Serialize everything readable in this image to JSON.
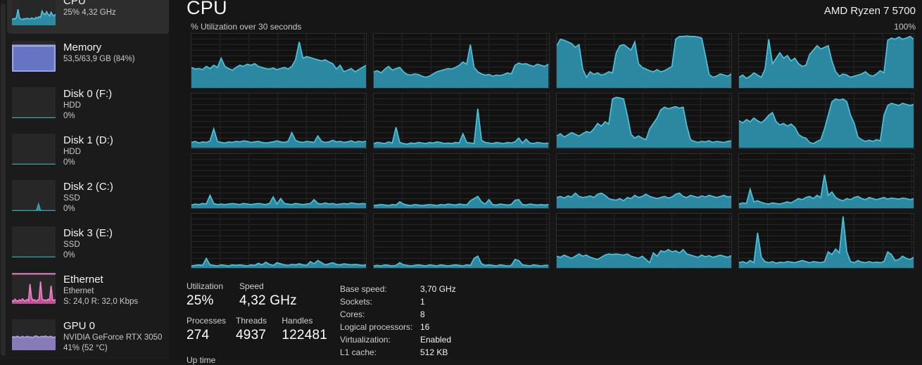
{
  "colors": {
    "cpu_fill": "#2e93ad",
    "cpu_stroke": "#4cc2da",
    "memory_fill": "#6674c4",
    "memory_border": "#98a6e8",
    "ethernet_stroke": "#ee82c6",
    "ethernet_fill": "#c9589d",
    "gpu_fill": "#9181c5",
    "gpu_stroke": "#b4a4dc",
    "selected_bg": "#2d2d2d"
  },
  "sidebar": {
    "items": [
      {
        "id": "cpu",
        "title": "CPU",
        "lines": [
          "25% 4,32 GHz"
        ],
        "selected": true,
        "thumb": {
          "type": "area",
          "stroke": "#4cc2da",
          "fill": "#2e93ad",
          "values": [
            18,
            22,
            20,
            26,
            52,
            24,
            20,
            18,
            22,
            20,
            23,
            21,
            20,
            24,
            22,
            20,
            26,
            23,
            28,
            25,
            46,
            38,
            34,
            44,
            36,
            30,
            42,
            34,
            30,
            36
          ]
        }
      },
      {
        "id": "memory",
        "title": "Memory",
        "lines": [
          "53,5/63,9 GB (84%)"
        ],
        "selected": false,
        "thumb": {
          "type": "memfill",
          "percent": 84,
          "fill": "#6674c4",
          "border": "#98a6e8"
        }
      },
      {
        "id": "disk0",
        "title": "Disk 0 (F:)",
        "lines": [
          "HDD",
          "0%"
        ],
        "selected": false,
        "thumb": {
          "type": "area",
          "stroke": "#3aa6ab",
          "fill": "#2e93ad",
          "values": [
            1,
            1,
            1,
            1,
            1,
            1,
            1,
            1,
            1,
            1,
            1,
            1,
            1,
            1,
            1,
            1,
            1,
            1,
            1,
            1,
            1,
            1,
            1,
            1
          ]
        }
      },
      {
        "id": "disk1",
        "title": "Disk 1 (D:)",
        "lines": [
          "HDD",
          "0%"
        ],
        "selected": false,
        "thumb": {
          "type": "area",
          "stroke": "#3aa6ab",
          "fill": "#2e93ad",
          "values": [
            1,
            1,
            1,
            1,
            1,
            1,
            1,
            1,
            1,
            1,
            1,
            1,
            1,
            1,
            1,
            1,
            1,
            1,
            1,
            1,
            1,
            1,
            1,
            1
          ]
        }
      },
      {
        "id": "disk2",
        "title": "Disk 2 (C:)",
        "lines": [
          "SSD",
          "0%"
        ],
        "selected": false,
        "thumb": {
          "type": "area",
          "stroke": "#3aa6ab",
          "fill": "#2e93ad",
          "values": [
            1,
            1,
            1,
            1,
            1,
            1,
            1,
            1,
            1,
            1,
            1,
            1,
            1,
            2,
            22,
            2,
            1,
            1,
            1,
            1,
            1,
            1,
            1,
            1
          ]
        }
      },
      {
        "id": "disk3",
        "title": "Disk 3 (E:)",
        "lines": [
          "SSD",
          "0%"
        ],
        "selected": false,
        "thumb": {
          "type": "area",
          "stroke": "#3aa6ab",
          "fill": "#2e93ad",
          "values": [
            1,
            1,
            1,
            1,
            1,
            1,
            1,
            1,
            1,
            1,
            1,
            1,
            1,
            1,
            1,
            1,
            1,
            1,
            1,
            1,
            1,
            1,
            1,
            1
          ]
        }
      },
      {
        "id": "ethernet",
        "title": "Ethernet",
        "lines": [
          "Ethernet",
          "S: 24,0 R: 32,0 Kbps"
        ],
        "selected": false,
        "thumb": {
          "type": "area",
          "topline": true,
          "stroke": "#ee82c6",
          "fill": "#c9589d",
          "values": [
            12,
            8,
            15,
            10,
            9,
            13,
            10,
            16,
            11,
            9,
            14,
            10,
            64,
            20,
            11,
            13,
            9,
            12,
            15,
            72,
            16,
            11,
            13,
            10,
            15,
            12,
            58,
            13,
            11,
            14
          ]
        }
      },
      {
        "id": "gpu0",
        "title": "GPU 0",
        "lines": [
          "NVIDIA GeForce RTX 3050",
          "41% (52 °C)"
        ],
        "selected": false,
        "thumb": {
          "type": "area",
          "stroke": "#b4a4dc",
          "fill": "#9181c5",
          "values": [
            42,
            44,
            42,
            45,
            43,
            41,
            45,
            42,
            43,
            45,
            42,
            43,
            41,
            45,
            46,
            43,
            42,
            45,
            43,
            46,
            44,
            42,
            45,
            43,
            41,
            44
          ]
        }
      }
    ]
  },
  "main": {
    "title": "CPU",
    "device": "AMD Ryzen 7 5700",
    "graph_caption": "% Utilization over 30 seconds",
    "scale_label": "100%"
  },
  "chart_data": {
    "type": "area",
    "title": "% Utilization over 30 seconds",
    "ylim": [
      0,
      100
    ],
    "grid": true,
    "layout": "4x4 per-logical-processor graphs",
    "series": [
      {
        "name": "CPU 0",
        "values": [
          38,
          35,
          36,
          34,
          40,
          36,
          42,
          38,
          55,
          40,
          36,
          33,
          38,
          42,
          40,
          44,
          42,
          45,
          40,
          38,
          36,
          35,
          37,
          34,
          36,
          38,
          35,
          40,
          52,
          85,
          55,
          58,
          56,
          54,
          52,
          50,
          52,
          48,
          45,
          35,
          42,
          30,
          33,
          36,
          30,
          34,
          38,
          42
        ]
      },
      {
        "name": "CPU 1",
        "values": [
          30,
          32,
          28,
          35,
          40,
          33,
          36,
          38,
          30,
          25,
          24,
          26,
          25,
          22,
          20,
          22,
          26,
          30,
          32,
          34,
          36,
          35,
          38,
          42,
          48,
          44,
          80,
          38,
          30,
          26,
          24,
          25,
          22,
          24,
          23,
          25,
          28,
          26,
          42,
          46,
          44,
          45,
          42,
          40,
          44,
          42,
          40,
          44
        ]
      },
      {
        "name": "CPU 2",
        "values": [
          78,
          90,
          88,
          85,
          82,
          75,
          80,
          35,
          20,
          30,
          25,
          28,
          24,
          26,
          30,
          28,
          65,
          78,
          80,
          75,
          70,
          85,
          45,
          38,
          35,
          32,
          30,
          34,
          30,
          32,
          36,
          40,
          90,
          95,
          95,
          96,
          95,
          95,
          94,
          92,
          60,
          25,
          20,
          22,
          26,
          24,
          22,
          26
        ]
      },
      {
        "name": "CPU 3",
        "values": [
          20,
          24,
          18,
          22,
          28,
          24,
          20,
          35,
          90,
          45,
          55,
          65,
          55,
          60,
          50,
          55,
          45,
          40,
          42,
          62,
          70,
          78,
          72,
          75,
          78,
          50,
          30,
          22,
          26,
          24,
          20,
          22,
          24,
          26,
          30,
          24,
          22,
          26,
          32,
          28,
          88,
          92,
          90,
          94,
          90,
          92,
          95,
          90
        ]
      },
      {
        "name": "CPU 4",
        "values": [
          10,
          12,
          9,
          11,
          10,
          13,
          35,
          12,
          10,
          9,
          11,
          10,
          12,
          11,
          13,
          12,
          10,
          11,
          12,
          10,
          9,
          10,
          11,
          13,
          11,
          10,
          12,
          28,
          14,
          11,
          10,
          12,
          11,
          10,
          22,
          12,
          10,
          11,
          14,
          11,
          12,
          10,
          11,
          13,
          10,
          12,
          11,
          12
        ]
      },
      {
        "name": "CPU 5",
        "values": [
          8,
          10,
          9,
          8,
          11,
          9,
          38,
          10,
          8,
          7,
          9,
          8,
          10,
          9,
          8,
          10,
          9,
          11,
          10,
          8,
          9,
          8,
          10,
          9,
          26,
          10,
          9,
          8,
          72,
          14,
          10,
          9,
          8,
          10,
          9,
          8,
          10,
          9,
          11,
          18,
          9,
          16,
          9,
          8,
          10,
          9,
          8,
          9
        ]
      },
      {
        "name": "CPU 6",
        "values": [
          22,
          26,
          20,
          24,
          28,
          25,
          22,
          26,
          30,
          28,
          35,
          45,
          40,
          48,
          44,
          90,
          93,
          92,
          90,
          60,
          25,
          18,
          22,
          18,
          15,
          35,
          45,
          55,
          70,
          75,
          72,
          74,
          76,
          73,
          75,
          40,
          15,
          12,
          10,
          12,
          11,
          13,
          10,
          12,
          11,
          10,
          12,
          13
        ]
      },
      {
        "name": "CPU 7",
        "values": [
          50,
          46,
          52,
          48,
          55,
          50,
          46,
          52,
          60,
          65,
          48,
          42,
          45,
          40,
          44,
          38,
          25,
          20,
          18,
          10,
          8,
          12,
          15,
          35,
          60,
          85,
          90,
          88,
          90,
          85,
          60,
          45,
          20,
          15,
          12,
          14,
          12,
          15,
          13,
          60,
          78,
          82,
          80,
          78,
          82,
          80,
          78,
          80
        ]
      },
      {
        "name": "CPU 8",
        "values": [
          6,
          8,
          7,
          9,
          8,
          24,
          9,
          7,
          8,
          7,
          8,
          9,
          8,
          7,
          9,
          8,
          7,
          8,
          9,
          8,
          7,
          9,
          21,
          8,
          18,
          9,
          8,
          7,
          9,
          8,
          7,
          8,
          9,
          16,
          9,
          8,
          10,
          8,
          9,
          7,
          8,
          9,
          8,
          10,
          9,
          8,
          9,
          8
        ]
      },
      {
        "name": "CPU 9",
        "values": [
          5,
          6,
          7,
          6,
          5,
          7,
          6,
          12,
          8,
          6,
          5,
          7,
          6,
          5,
          6,
          7,
          6,
          5,
          7,
          6,
          8,
          7,
          6,
          8,
          7,
          6,
          14,
          18,
          22,
          12,
          8,
          16,
          7,
          6,
          8,
          7,
          6,
          7,
          15,
          16,
          7,
          6,
          8,
          7,
          6,
          7,
          6,
          7
        ]
      },
      {
        "name": "CPU 10",
        "values": [
          20,
          22,
          19,
          23,
          21,
          28,
          22,
          20,
          21,
          23,
          20,
          26,
          28,
          24,
          18,
          16,
          15,
          18,
          14,
          20,
          18,
          24,
          20,
          22,
          26,
          22,
          20,
          18,
          20,
          22,
          19,
          21,
          26,
          28,
          22,
          20,
          24,
          22,
          20,
          23,
          21,
          24,
          22,
          20,
          22,
          24,
          21,
          22
        ]
      },
      {
        "name": "CPU 11",
        "values": [
          8,
          10,
          9,
          35,
          12,
          14,
          11,
          9,
          8,
          10,
          9,
          8,
          10,
          12,
          10,
          14,
          18,
          16,
          20,
          22,
          18,
          24,
          20,
          62,
          24,
          30,
          20,
          16,
          14,
          18,
          16,
          20,
          22,
          18,
          16,
          20,
          18,
          16,
          18,
          20,
          17,
          19,
          18,
          17,
          19,
          18,
          16,
          18
        ]
      },
      {
        "name": "CPU 12",
        "values": [
          4,
          5,
          6,
          5,
          18,
          6,
          5,
          4,
          6,
          5,
          4,
          6,
          5,
          6,
          5,
          4,
          6,
          5,
          9,
          6,
          11,
          7,
          5,
          10,
          8,
          6,
          5,
          7,
          6,
          8,
          6,
          5,
          12,
          8,
          14,
          10,
          6,
          8,
          10,
          7,
          6,
          8,
          7,
          6,
          7,
          6,
          5,
          6
        ]
      },
      {
        "name": "CPU 13",
        "values": [
          4,
          5,
          4,
          6,
          5,
          4,
          5,
          10,
          6,
          5,
          4,
          5,
          6,
          5,
          4,
          6,
          5,
          4,
          6,
          5,
          4,
          5,
          6,
          5,
          4,
          6,
          5,
          18,
          22,
          8,
          5,
          6,
          5,
          4,
          6,
          5,
          4,
          5,
          16,
          14,
          6,
          5,
          4,
          6,
          5,
          4,
          5,
          5
        ]
      },
      {
        "name": "CPU 14",
        "values": [
          22,
          20,
          24,
          21,
          18,
          22,
          26,
          22,
          24,
          20,
          18,
          16,
          20,
          24,
          26,
          25,
          26,
          25,
          24,
          26,
          22,
          20,
          18,
          22,
          16,
          10,
          28,
          22,
          32,
          30,
          34,
          30,
          32,
          28,
          34,
          26,
          24,
          22,
          20,
          24,
          21,
          23,
          20,
          22,
          24,
          22,
          20,
          23
        ]
      },
      {
        "name": "CPU 15",
        "values": [
          10,
          12,
          9,
          14,
          10,
          65,
          20,
          12,
          10,
          12,
          9,
          11,
          10,
          12,
          11,
          10,
          12,
          14,
          12,
          10,
          12,
          11,
          10,
          12,
          30,
          25,
          35,
          28,
          95,
          30,
          12,
          10,
          14,
          11,
          10,
          12,
          10,
          11,
          10,
          12,
          30,
          25,
          14,
          16,
          22,
          18,
          16,
          20
        ]
      }
    ]
  },
  "stats": {
    "primary": [
      {
        "label": "Utilization",
        "value": "25%"
      },
      {
        "label": "Speed",
        "value": "4,32 GHz"
      }
    ],
    "secondary": [
      {
        "label": "Processes",
        "value": "274"
      },
      {
        "label": "Threads",
        "value": "4937"
      },
      {
        "label": "Handles",
        "value": "122481"
      }
    ],
    "cutoff_label": "Up time",
    "details": [
      {
        "label": "Base speed:",
        "value": "3,70 GHz"
      },
      {
        "label": "Sockets:",
        "value": "1"
      },
      {
        "label": "Cores:",
        "value": "8"
      },
      {
        "label": "Logical processors:",
        "value": "16"
      },
      {
        "label": "Virtualization:",
        "value": "Enabled"
      },
      {
        "label": "L1 cache:",
        "value": "512 KB"
      }
    ]
  }
}
